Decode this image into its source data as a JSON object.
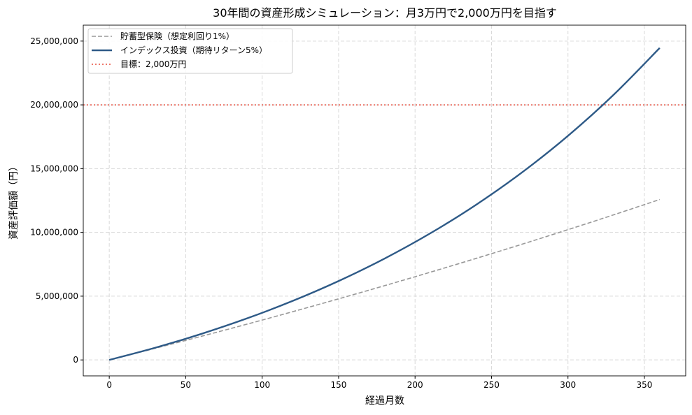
{
  "chart_data": {
    "type": "line",
    "title": "30年間の資産形成シミュレーション：月3万円で2,000万円を目指す",
    "xlabel": "経過月数",
    "ylabel": "資産評価額（円）",
    "xlim": [
      -17,
      377
    ],
    "ylim": [
      -1250000,
      26250000
    ],
    "xticks": [
      0,
      50,
      100,
      150,
      200,
      250,
      300,
      350
    ],
    "yticks": [
      0,
      5000000,
      10000000,
      15000000,
      20000000,
      25000000
    ],
    "ytick_labels": [
      "0",
      "5,000,000",
      "10,000,000",
      "15,000,000",
      "20,000,000",
      "25,000,000"
    ],
    "grid": true,
    "legend_position": "top-left",
    "x": [
      0,
      30,
      60,
      90,
      120,
      150,
      180,
      210,
      240,
      270,
      300,
      330,
      360
    ],
    "series": [
      {
        "name": "貯蓄型保険（想定利回り1%）",
        "color": "#999999",
        "style": "dashed",
        "values": [
          0,
          910900,
          1844700,
          2802100,
          3783600,
          4789800,
          5821400,
          6878900,
          7963100,
          9074600,
          10214000,
          11382300,
          12579900
        ]
      },
      {
        "name": "インデックス投資（期待リターン5%）",
        "color": "#2e5a87",
        "style": "solid",
        "values": [
          0,
          955300,
          2034400,
          3253500,
          4630900,
          6187000,
          7944800,
          9930700,
          12174200,
          14708800,
          17572200,
          20806800,
          24461300
        ]
      }
    ],
    "hlines": [
      {
        "name": "目標：2,000万円",
        "value": 20000000,
        "color": "#e74c3c",
        "style": "dotted"
      }
    ]
  }
}
